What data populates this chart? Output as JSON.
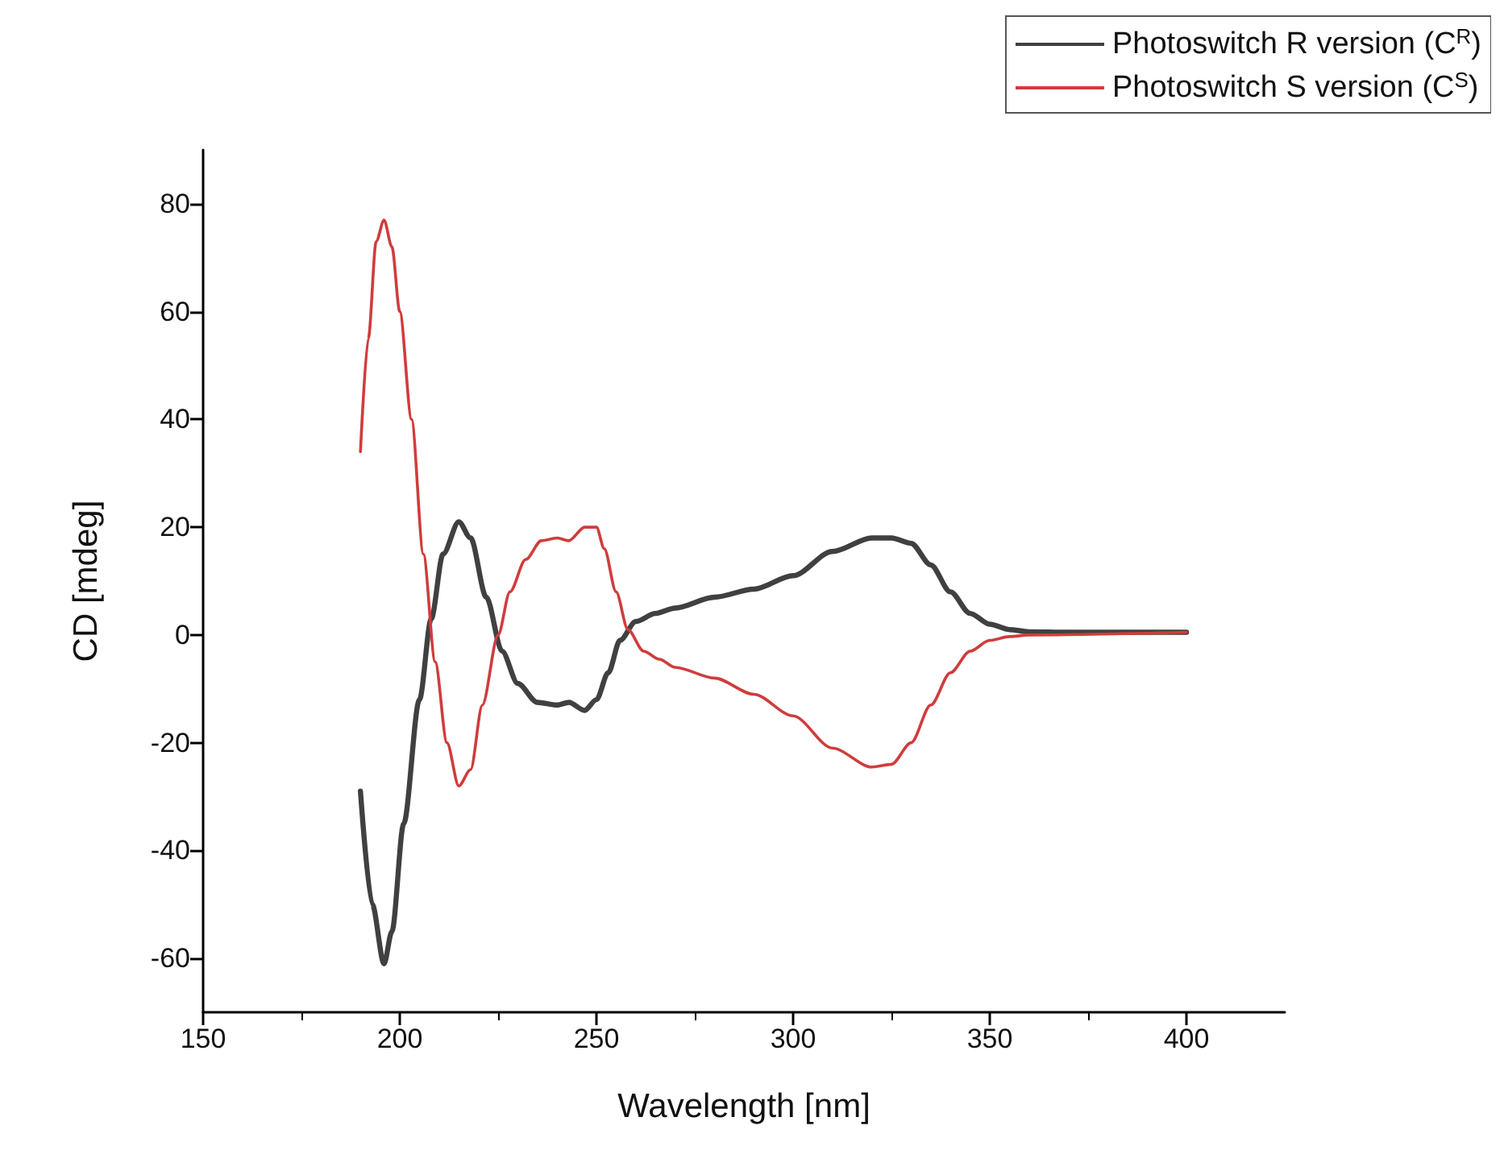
{
  "chart_data": {
    "type": "line",
    "xlabel": "Wavelength [nm]",
    "ylabel": "CD [mdeg]",
    "xlim": [
      150,
      425
    ],
    "xticks": [
      150,
      200,
      250,
      300,
      350,
      400
    ],
    "ylim": [
      -70,
      90
    ],
    "yticks": [
      -60,
      -40,
      -20,
      0,
      20,
      40,
      60,
      80
    ],
    "grid": false,
    "legend": "top right",
    "marker": "none",
    "line_style": "solid",
    "series": [
      {
        "name": "Photoswitch R version (C$^{R}$)",
        "color": "#404040",
        "x": [
          190,
          193,
          196,
          198,
          201,
          205,
          208,
          211,
          215,
          218,
          222,
          226,
          230,
          235,
          240,
          243,
          247,
          250,
          253,
          256,
          260,
          265,
          270,
          280,
          290,
          300,
          310,
          320,
          325,
          330,
          335,
          340,
          345,
          350,
          355,
          360,
          370,
          380,
          390,
          400
        ],
        "values": [
          -29,
          -50,
          -61,
          -55,
          -35,
          -12,
          3,
          15,
          21,
          18,
          7,
          -3,
          -9,
          -12.5,
          -13,
          -12.5,
          -14,
          -12,
          -7,
          -1,
          2.5,
          4,
          5,
          7,
          8.5,
          11,
          15.5,
          18,
          18,
          17,
          13,
          8,
          4,
          2,
          1,
          0.6,
          0.5,
          0.5,
          0.5,
          0.5
        ]
      },
      {
        "name": "Photoswitch S version (C$^{S}$)",
        "color": "#d03c3c",
        "x": [
          190,
          192,
          194,
          196,
          198,
          200,
          203,
          206,
          209,
          212,
          215,
          218,
          221,
          225,
          228,
          232,
          236,
          240,
          243,
          247,
          250,
          252,
          255,
          258,
          262,
          266,
          270,
          280,
          290,
          300,
          310,
          320,
          325,
          330,
          335,
          340,
          345,
          350,
          355,
          360,
          400
        ],
        "values": [
          34,
          55,
          73,
          77,
          72,
          60,
          40,
          15,
          -5,
          -20,
          -28,
          -25,
          -13,
          0,
          8,
          14,
          17.5,
          18,
          17.5,
          20,
          20,
          16,
          8,
          1,
          -3,
          -4.5,
          -6,
          -8,
          -11,
          -15,
          -21,
          -24.5,
          -24,
          -20,
          -13,
          -7,
          -3,
          -1,
          -0.3,
          0,
          0.5
        ]
      }
    ]
  }
}
